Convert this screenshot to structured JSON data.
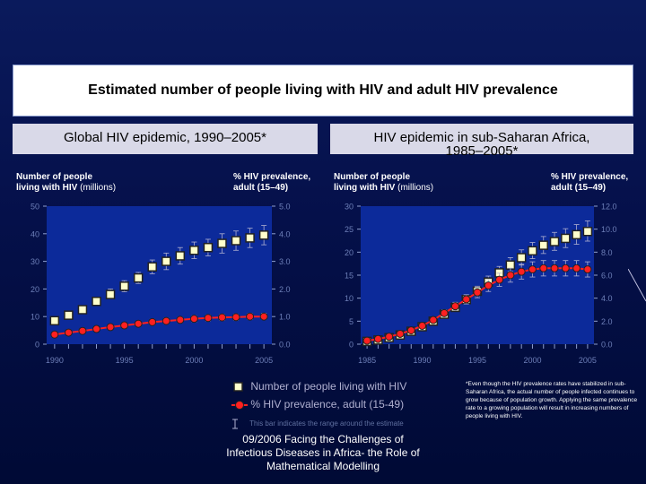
{
  "title": "Estimated number of people living with HIV and adult HIV prevalence",
  "panels": {
    "left": {
      "title": "Global HIV epidemic, 1990–2005*",
      "ylabel_left": "Number of people",
      "ylabel_left_2": "living with HIV",
      "ylabel_left_unit": "(millions)",
      "ylabel_right": "% HIV prevalence,",
      "ylabel_right_2": "adult (15–49)"
    },
    "right": {
      "title_line1": "HIV epidemic in sub-Saharan Africa,",
      "title_line2": "1985–2005*",
      "ylabel_left": "Number of people",
      "ylabel_left_2": "living with HIV",
      "ylabel_left_unit": "(millions)",
      "ylabel_right": "% HIV prevalence,",
      "ylabel_right_2": "adult (15–49)"
    }
  },
  "legend": {
    "people": "Number of people living with HIV",
    "prevalence": "% HIV prevalence, adult (15-49)",
    "range": "This bar indicates the range around the estimate"
  },
  "footnote": "*Even though the HIV prevalence rates have stabilized in sub-Saharan Africa, the actual number of people infected continues to grow because of population growth. Applying the same prevalence rate to a growing population will result in increasing numbers of people living with HIV.",
  "source": "09/2006 Facing the Challenges of Infectious Diseases in Africa- the Role of Mathematical Modelling",
  "colors": {
    "background": "#0a1a5c",
    "plot_bg": "#0c2a9a",
    "people_marker_fill": "#ffffcc",
    "prevalence_line": "#ff2020",
    "prevalence_marker": "#ff2020",
    "text": "#ffffff"
  },
  "chart_data": [
    {
      "type": "line",
      "title": "Global HIV epidemic, 1990–2005*",
      "x": [
        1990,
        1991,
        1992,
        1993,
        1994,
        1995,
        1996,
        1997,
        1998,
        1999,
        2000,
        2001,
        2002,
        2003,
        2004,
        2005
      ],
      "xticks": [
        1990,
        1995,
        2000,
        2005
      ],
      "ylim_left": [
        0,
        50
      ],
      "yticks_left": [
        0,
        10,
        20,
        30,
        40,
        50
      ],
      "ylim_right": [
        0,
        5
      ],
      "yticks_right": [
        "0.0",
        "1.0",
        "2.0",
        "3.0",
        "4.0",
        "5.0"
      ],
      "series": [
        {
          "name": "Number of people living with HIV",
          "axis": "left",
          "values": [
            8.5,
            10.5,
            12.5,
            15.5,
            18,
            21,
            24,
            28,
            30,
            32,
            34,
            35,
            36.5,
            37.5,
            38.5,
            39.5
          ],
          "err_low": [
            7.5,
            9.5,
            11,
            14,
            16.5,
            19,
            22,
            25.5,
            27,
            29,
            31,
            32,
            33,
            34,
            35,
            36
          ],
          "err_high": [
            9.5,
            11.5,
            14,
            17,
            20,
            23,
            26,
            30.5,
            33,
            35,
            37,
            38,
            40,
            41,
            42,
            43
          ]
        },
        {
          "name": "% HIV prevalence, adult (15-49)",
          "axis": "right",
          "values": [
            0.35,
            0.42,
            0.48,
            0.55,
            0.62,
            0.68,
            0.74,
            0.8,
            0.84,
            0.88,
            0.92,
            0.95,
            0.97,
            0.98,
            1.0,
            1.0
          ],
          "err_low": [
            0.3,
            0.37,
            0.43,
            0.5,
            0.55,
            0.6,
            0.66,
            0.7,
            0.74,
            0.78,
            0.81,
            0.84,
            0.86,
            0.87,
            0.89,
            0.9
          ],
          "err_high": [
            0.4,
            0.47,
            0.53,
            0.6,
            0.69,
            0.76,
            0.82,
            0.9,
            0.94,
            0.98,
            1.03,
            1.06,
            1.08,
            1.09,
            1.11,
            1.12
          ]
        }
      ]
    },
    {
      "type": "line",
      "title": "HIV epidemic in sub-Saharan Africa, 1985–2005*",
      "x": [
        1985,
        1986,
        1987,
        1988,
        1989,
        1990,
        1991,
        1992,
        1993,
        1994,
        1995,
        1996,
        1997,
        1998,
        1999,
        2000,
        2001,
        2002,
        2003,
        2004,
        2005
      ],
      "xticks": [
        1985,
        1990,
        1995,
        2000,
        2005
      ],
      "ylim_left": [
        0,
        30
      ],
      "yticks_left": [
        0,
        5,
        10,
        15,
        20,
        25,
        30
      ],
      "ylim_right": [
        0,
        12
      ],
      "yticks_right": [
        "0.0",
        "2.0",
        "4.0",
        "6.0",
        "8.0",
        "10.0",
        "12.0"
      ],
      "series": [
        {
          "name": "Number of people living with HIV",
          "axis": "left",
          "values": [
            0.6,
            0.9,
            1.4,
            2.0,
            2.8,
            3.8,
            5.0,
            6.5,
            8.0,
            9.7,
            11.5,
            13.5,
            15.5,
            17.2,
            18.8,
            20.3,
            21.5,
            22.3,
            23.0,
            23.8,
            24.5
          ],
          "err_low": [
            0.5,
            0.8,
            1.2,
            1.8,
            2.5,
            3.4,
            4.5,
            5.9,
            7.3,
            8.8,
            10.5,
            12.3,
            14.2,
            15.8,
            17.2,
            18.6,
            19.7,
            20.4,
            21.0,
            21.7,
            22.4
          ],
          "err_high": [
            0.7,
            1.0,
            1.6,
            2.3,
            3.1,
            4.2,
            5.6,
            7.2,
            8.8,
            10.7,
            12.6,
            14.8,
            16.9,
            18.8,
            20.5,
            22.1,
            23.4,
            24.3,
            25.1,
            26.0,
            26.8
          ]
        },
        {
          "name": "% HIV prevalence, adult (15-49)",
          "axis": "right",
          "values": [
            0.3,
            0.45,
            0.65,
            0.9,
            1.2,
            1.6,
            2.1,
            2.7,
            3.3,
            3.9,
            4.5,
            5.1,
            5.6,
            6.0,
            6.3,
            6.5,
            6.6,
            6.6,
            6.6,
            6.6,
            6.5
          ],
          "err_low": [
            0.25,
            0.4,
            0.58,
            0.8,
            1.07,
            1.43,
            1.88,
            2.42,
            2.96,
            3.5,
            4.04,
            4.58,
            5.03,
            5.39,
            5.66,
            5.84,
            5.93,
            5.93,
            5.93,
            5.93,
            5.84
          ],
          "err_high": [
            0.35,
            0.5,
            0.72,
            1.0,
            1.33,
            1.77,
            2.32,
            2.98,
            3.64,
            4.3,
            4.96,
            5.62,
            6.17,
            6.61,
            6.94,
            7.16,
            7.27,
            7.27,
            7.27,
            7.27,
            7.16
          ]
        }
      ]
    }
  ]
}
